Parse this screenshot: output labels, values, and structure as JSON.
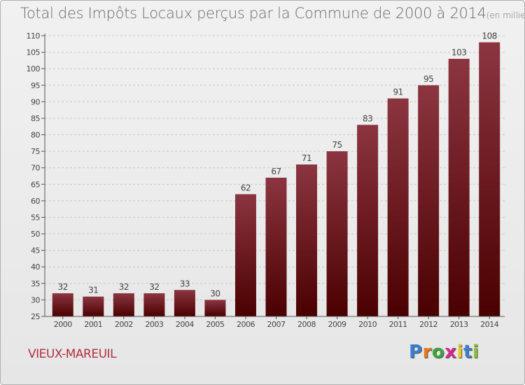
{
  "title": "Total des Impôts Locaux perçus par la Commune de 2000 à 2014",
  "title_unit": "(en milliers d'€)",
  "commune": "VIEUX-MAREUIL",
  "logo": {
    "letters": [
      "P",
      "r",
      "o",
      "x",
      "i",
      "t",
      "i"
    ],
    "colors": [
      "#3a7fd0",
      "#e8791e",
      "#3aa63a",
      "#d42a8c",
      "#e8c81e",
      "#3a7fd0",
      "#8ac43a"
    ]
  },
  "chart_data": {
    "type": "bar",
    "title": "Total des Impôts Locaux perçus par la Commune de 2000 à 2014",
    "xlabel": "",
    "ylabel": "",
    "categories": [
      "2000",
      "2001",
      "2002",
      "2003",
      "2004",
      "2005",
      "2006",
      "2007",
      "2008",
      "2009",
      "2010",
      "2011",
      "2012",
      "2013",
      "2014"
    ],
    "values": [
      32,
      31,
      32,
      32,
      33,
      30,
      62,
      67,
      71,
      75,
      83,
      91,
      95,
      103,
      108
    ],
    "ylim": [
      25,
      110
    ],
    "yticks": [
      25,
      30,
      35,
      40,
      45,
      50,
      55,
      60,
      65,
      70,
      75,
      80,
      85,
      90,
      95,
      100,
      105,
      110
    ],
    "grid": true,
    "bar_color_top": "#8b3540",
    "bar_color_bottom": "#4a0000"
  }
}
